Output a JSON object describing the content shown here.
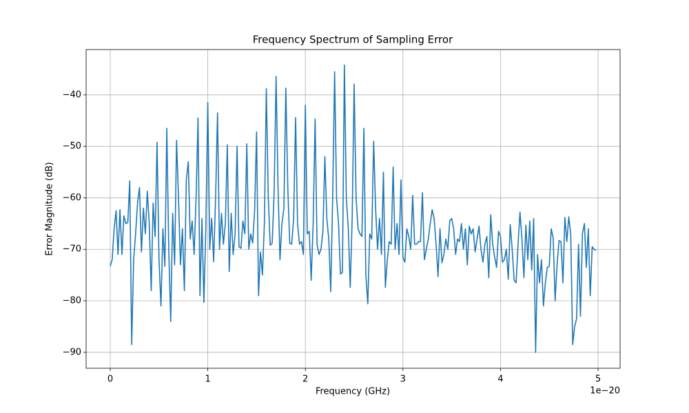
{
  "chart_data": {
    "type": "line",
    "title": "Frequency Spectrum of Sampling Error",
    "x_label": "Frequency (GHz)",
    "y_label": "Error Magnitude (dB)",
    "x_offset_label": "1e−20",
    "color": "#1f77b4",
    "grid": true,
    "xlim": [
      -0.247,
      5.226
    ],
    "ylim": [
      -93.1,
      -31.2
    ],
    "xticks": [
      0,
      1,
      2,
      3,
      4,
      5
    ],
    "yticks": [
      {
        "value": -90,
        "label": "−90"
      },
      {
        "value": -80,
        "label": "−80"
      },
      {
        "value": -70,
        "label": "−70"
      },
      {
        "value": -60,
        "label": "−60"
      },
      {
        "value": -50,
        "label": "−50"
      },
      {
        "value": -40,
        "label": "−40"
      }
    ],
    "x": [
      0,
      0.02,
      0.04,
      0.06,
      0.08,
      0.1,
      0.12,
      0.14,
      0.16,
      0.18,
      0.2,
      0.22,
      0.24,
      0.26,
      0.28,
      0.3,
      0.32,
      0.34,
      0.36,
      0.38,
      0.4,
      0.42,
      0.44,
      0.46,
      0.48,
      0.5,
      0.52,
      0.54,
      0.56,
      0.58,
      0.6,
      0.62,
      0.64,
      0.66,
      0.68,
      0.7,
      0.72,
      0.74,
      0.76,
      0.78,
      0.8,
      0.82,
      0.84,
      0.86,
      0.88,
      0.9,
      0.92,
      0.94,
      0.96,
      0.98,
      1,
      1.02,
      1.04,
      1.06,
      1.08,
      1.1,
      1.12,
      1.14,
      1.16,
      1.18,
      1.2,
      1.22,
      1.24,
      1.26,
      1.28,
      1.3,
      1.32,
      1.34,
      1.36,
      1.38,
      1.4,
      1.42,
      1.44,
      1.46,
      1.48,
      1.5,
      1.52,
      1.54,
      1.56,
      1.58,
      1.6,
      1.62,
      1.64,
      1.66,
      1.68,
      1.7,
      1.72,
      1.74,
      1.76,
      1.78,
      1.8,
      1.82,
      1.84,
      1.86,
      1.88,
      1.9,
      1.92,
      1.94,
      1.96,
      1.98,
      2,
      2.02,
      2.04,
      2.06,
      2.08,
      2.1,
      2.12,
      2.14,
      2.16,
      2.18,
      2.2,
      2.22,
      2.24,
      2.26,
      2.28,
      2.3,
      2.32,
      2.34,
      2.36,
      2.38,
      2.4,
      2.42,
      2.44,
      2.46,
      2.48,
      2.5,
      2.52,
      2.54,
      2.56,
      2.58,
      2.6,
      2.62,
      2.64,
      2.66,
      2.68,
      2.7,
      2.72,
      2.74,
      2.76,
      2.78,
      2.8,
      2.82,
      2.84,
      2.86,
      2.88,
      2.9,
      2.92,
      2.94,
      2.96,
      2.98,
      3,
      3.02,
      3.04,
      3.06,
      3.08,
      3.1,
      3.12,
      3.14,
      3.16,
      3.18,
      3.2,
      3.22,
      3.24,
      3.26,
      3.28,
      3.3,
      3.32,
      3.34,
      3.36,
      3.38,
      3.4,
      3.42,
      3.44,
      3.46,
      3.48,
      3.5,
      3.52,
      3.54,
      3.56,
      3.58,
      3.6,
      3.62,
      3.64,
      3.66,
      3.68,
      3.7,
      3.72,
      3.74,
      3.76,
      3.78,
      3.8,
      3.82,
      3.84,
      3.86,
      3.88,
      3.9,
      3.92,
      3.94,
      3.96,
      3.98,
      4,
      4.02,
      4.04,
      4.06,
      4.08,
      4.1,
      4.12,
      4.14,
      4.16,
      4.18,
      4.2,
      4.22,
      4.24,
      4.26,
      4.28,
      4.3,
      4.32,
      4.34,
      4.36,
      4.38,
      4.4,
      4.42,
      4.44,
      4.46,
      4.48,
      4.5,
      4.52,
      4.54,
      4.56,
      4.58,
      4.6,
      4.62,
      4.64,
      4.66,
      4.68,
      4.7,
      4.72,
      4.74,
      4.76,
      4.78,
      4.8,
      4.82,
      4.84,
      4.86,
      4.88,
      4.9,
      4.92,
      4.94,
      4.96,
      4.98
    ],
    "values": [
      -73.3,
      -72,
      -66,
      -62.5,
      -71,
      -62.3,
      -71,
      -63.5,
      -65,
      -64.8,
      -56.7,
      -88.5,
      -72,
      -67,
      -61,
      -58,
      -70.5,
      -62,
      -67,
      -58.7,
      -65,
      -78,
      -61,
      -67.5,
      -49.2,
      -72,
      -81,
      -66,
      -73.3,
      -46.5,
      -70,
      -84,
      -63,
      -73,
      -48.8,
      -60,
      -73,
      -66,
      -78,
      -56.5,
      -53,
      -68,
      -64.5,
      -71,
      -60,
      -44.5,
      -79,
      -64,
      -80.3,
      -66,
      -41.5,
      -70,
      -64,
      -72.4,
      -60,
      -43.5,
      -70,
      -63,
      -69,
      -65,
      -49.7,
      -74.3,
      -63,
      -71,
      -67,
      -50,
      -69.5,
      -69.8,
      -64.5,
      -67,
      -49.5,
      -70,
      -67,
      -68.8,
      -62.5,
      -47.2,
      -79,
      -70.5,
      -75,
      -65,
      -38.8,
      -60,
      -69.2,
      -68.8,
      -59,
      -36.4,
      -58,
      -72,
      -65,
      -62,
      -38.7,
      -58,
      -68.8,
      -69,
      -64,
      -44.4,
      -65,
      -69,
      -68.5,
      -71,
      -42,
      -67,
      -66.5,
      -76,
      -65,
      -44.7,
      -69,
      -71,
      -70,
      -66.5,
      -52,
      -64,
      -68,
      -78.2,
      -60,
      -35.5,
      -60,
      -65,
      -74.8,
      -74.5,
      -34.2,
      -60,
      -66,
      -77.4,
      -64,
      -37.9,
      -60,
      -66,
      -67,
      -67.5,
      -46.5,
      -75,
      -80.6,
      -67,
      -68,
      -49,
      -62,
      -70,
      -64,
      -71,
      -55,
      -77.4,
      -72,
      -68.5,
      -69,
      -54,
      -70,
      -65,
      -71,
      -56.5,
      -71.5,
      -72.5,
      -66,
      -67.5,
      -70,
      -59.5,
      -69,
      -69,
      -68.5,
      -68.5,
      -59,
      -72,
      -70,
      -68,
      -65,
      -62.3,
      -64,
      -69,
      -75.3,
      -66,
      -72.6,
      -71,
      -68,
      -70,
      -64.5,
      -64,
      -66,
      -71,
      -68,
      -68.5,
      -65,
      -70,
      -66,
      -73,
      -65.5,
      -67,
      -66,
      -70.5,
      -68,
      -65.5,
      -70,
      -72.5,
      -69,
      -67.5,
      -75.5,
      -63.3,
      -69,
      -71.5,
      -73.5,
      -66.5,
      -67.5,
      -72.5,
      -72,
      -70,
      -75.8,
      -65.2,
      -70,
      -76,
      -76.5,
      -69,
      -62.8,
      -68,
      -75.5,
      -65.3,
      -72,
      -64.5,
      -74,
      -64,
      -90,
      -71,
      -76.5,
      -72,
      -81,
      -76.5,
      -73.5,
      -73.3,
      -66,
      -67.8,
      -80,
      -73,
      -68.3,
      -68.5,
      -76.5,
      -63.8,
      -68.5,
      -63.7,
      -67,
      -88.5,
      -85,
      -83.5,
      -69,
      -83,
      -67,
      -65,
      -73.5,
      -66,
      -79,
      -69.5,
      -70,
      -70.2
    ]
  }
}
